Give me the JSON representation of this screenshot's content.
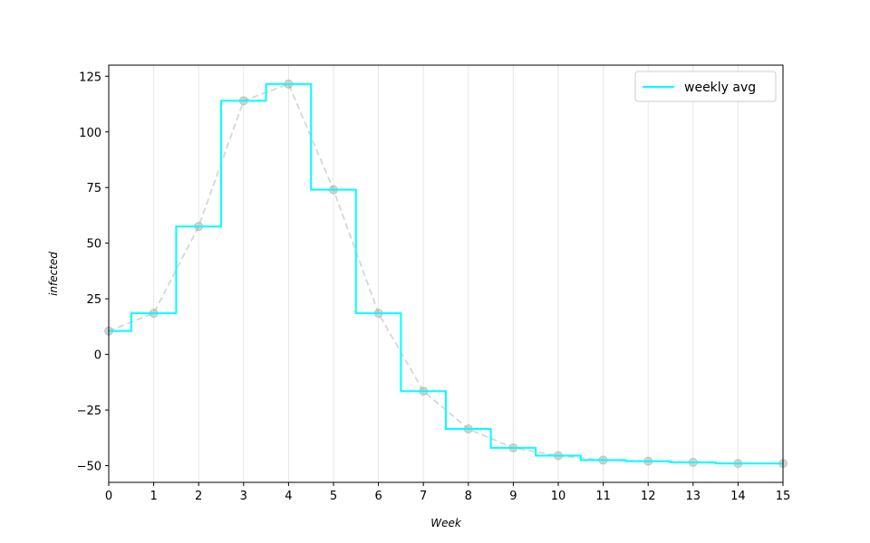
{
  "chart_data": {
    "type": "line",
    "title": "",
    "xlabel": "Week",
    "ylabel": "infected",
    "xlim": [
      0,
      15
    ],
    "ylim": [
      -57.5,
      130
    ],
    "xticks": [
      0,
      1,
      2,
      3,
      4,
      5,
      6,
      7,
      8,
      9,
      10,
      11,
      12,
      13,
      14,
      15
    ],
    "yticks": [
      -50,
      -25,
      0,
      25,
      50,
      75,
      100,
      125
    ],
    "ytick_labels": [
      "−50",
      "−25",
      "0",
      "25",
      "50",
      "75",
      "100",
      "125"
    ],
    "grid": "vertical",
    "legend_position": "top-right",
    "series": [
      {
        "name": "",
        "style": "dashed-markers",
        "color": "#bbbbbb",
        "x": [
          0,
          1,
          2,
          3,
          4,
          5,
          6,
          7,
          8,
          9,
          10,
          11,
          12,
          13,
          14,
          15
        ],
        "values": [
          10.5,
          18.5,
          57.5,
          114,
          121.5,
          74,
          18.5,
          -16.5,
          -33.5,
          -42,
          -45.5,
          -47.5,
          -48,
          -48.5,
          -49,
          -49
        ]
      },
      {
        "name": "weekly avg",
        "style": "step-mid",
        "color": "#00ffff",
        "x": [
          0,
          1,
          2,
          3,
          4,
          5,
          6,
          7,
          8,
          9,
          10,
          11,
          12,
          13,
          14,
          15
        ],
        "values": [
          10.5,
          18.5,
          57.5,
          114,
          121.5,
          74,
          18.5,
          -16.5,
          -33.5,
          -42,
          -45.5,
          -47.5,
          -48,
          -48.5,
          -49,
          -49
        ]
      }
    ]
  }
}
